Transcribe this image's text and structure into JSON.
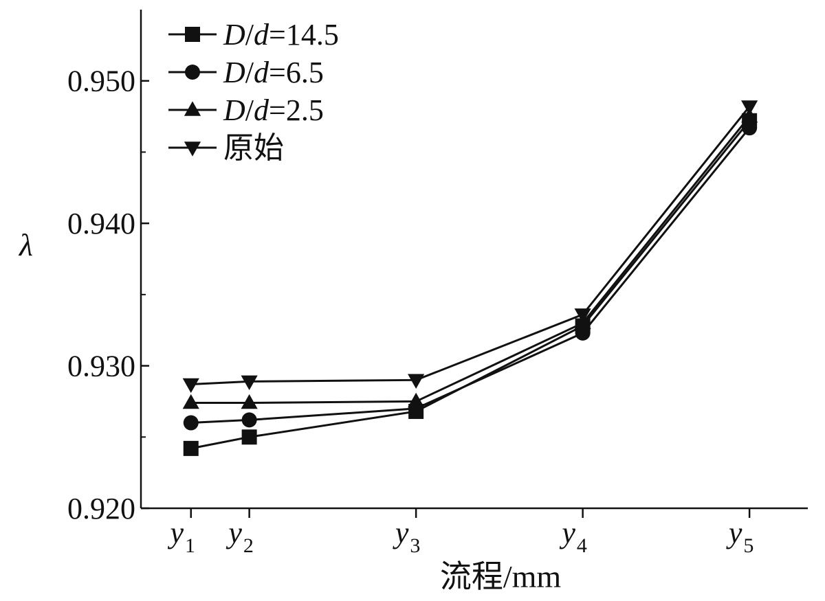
{
  "chart_data": {
    "type": "line",
    "title": "",
    "xlabel": "流程/mm",
    "ylabel": "λ",
    "categories": [
      {
        "base": "y",
        "sub": "1"
      },
      {
        "base": "y",
        "sub": "2"
      },
      {
        "base": "y",
        "sub": "3"
      },
      {
        "base": "y",
        "sub": "4"
      },
      {
        "base": "y",
        "sub": "5"
      }
    ],
    "x_positions": [
      1,
      1.35,
      2.35,
      3.35,
      4.35
    ],
    "x_range": [
      0.7,
      4.7
    ],
    "ylim": [
      0.92,
      0.955
    ],
    "yticks": [
      0.92,
      0.93,
      0.94,
      0.95
    ],
    "ytick_labels": [
      "0.920",
      "0.930",
      "0.940",
      "0.950"
    ],
    "grid": false,
    "legend_position": "top-left",
    "series": [
      {
        "name": "D/d=14.5",
        "name_parts": [
          {
            "t": "D",
            "i": true
          },
          {
            "t": "/",
            "i": false
          },
          {
            "t": "d",
            "i": true
          },
          {
            "t": "=14.5",
            "i": false
          }
        ],
        "marker": "square",
        "values": [
          0.9242,
          0.925,
          0.9268,
          0.9328,
          0.9472
        ]
      },
      {
        "name": "D/d=6.5",
        "name_parts": [
          {
            "t": "D",
            "i": true
          },
          {
            "t": "/",
            "i": false
          },
          {
            "t": "d",
            "i": true
          },
          {
            "t": "=6.5",
            "i": false
          }
        ],
        "marker": "circle",
        "values": [
          0.926,
          0.9262,
          0.927,
          0.9323,
          0.9467
        ]
      },
      {
        "name": "D/d=2.5",
        "name_parts": [
          {
            "t": "D",
            "i": true
          },
          {
            "t": "/",
            "i": false
          },
          {
            "t": "d",
            "i": true
          },
          {
            "t": "=2.5",
            "i": false
          }
        ],
        "marker": "triangle-up",
        "values": [
          0.9274,
          0.9274,
          0.9275,
          0.933,
          0.9475
        ]
      },
      {
        "name": "原始",
        "name_parts": [
          {
            "t": "原始",
            "i": false
          }
        ],
        "marker": "triangle-down",
        "values": [
          0.9287,
          0.9289,
          0.929,
          0.9336,
          0.9482
        ]
      }
    ],
    "colors": {
      "line": "#111111",
      "background": "#ffffff"
    }
  }
}
